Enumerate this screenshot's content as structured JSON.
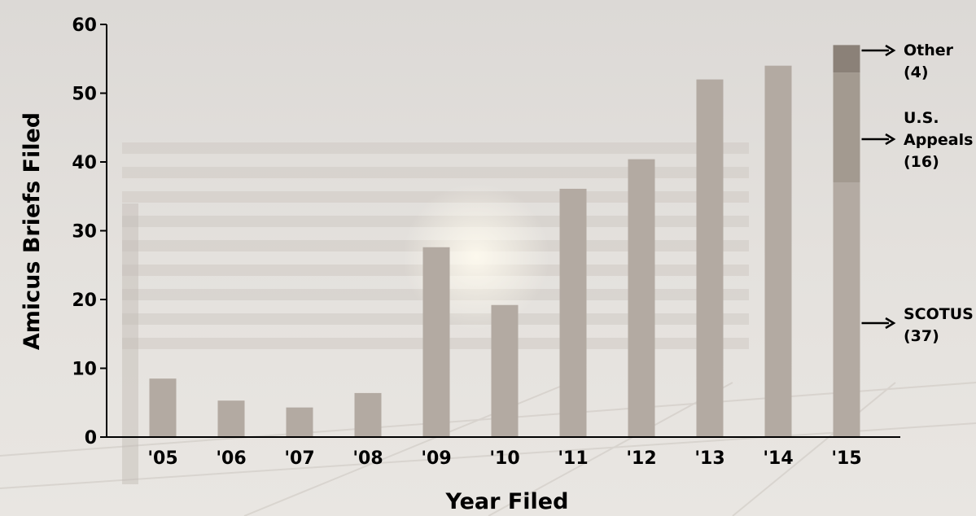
{
  "chart_data": {
    "type": "bar",
    "xlabel": "Year Filed",
    "ylabel": "Amicus Briefs Filed",
    "ylim": [
      0,
      60
    ],
    "yticks": [
      0,
      10,
      20,
      30,
      40,
      50,
      60
    ],
    "grid": false,
    "categories": [
      "'05",
      "'06",
      "'07",
      "'08",
      "'09",
      "'10",
      "'11",
      "'12",
      "'13",
      "'14",
      "'15"
    ],
    "values": [
      8.5,
      5.3,
      4.3,
      6.4,
      27.6,
      19.2,
      36.1,
      40.4,
      52.0,
      54.0,
      57.0
    ],
    "stacked_last": {
      "category": "'15",
      "segments": [
        {
          "name": "SCOTUS",
          "value": 37,
          "label": "SCOTUS\n(37)"
        },
        {
          "name": "U.S. Appeals",
          "value": 16,
          "label": "U.S.\nAppeals\n(16)"
        },
        {
          "name": "Other",
          "value": 4,
          "label": "Other\n(4)"
        }
      ]
    },
    "colors": {
      "bar": "#b3aaa2",
      "scotus": "#b3aaa2",
      "appeals": "#a39a90",
      "other": "#8b8178"
    }
  }
}
